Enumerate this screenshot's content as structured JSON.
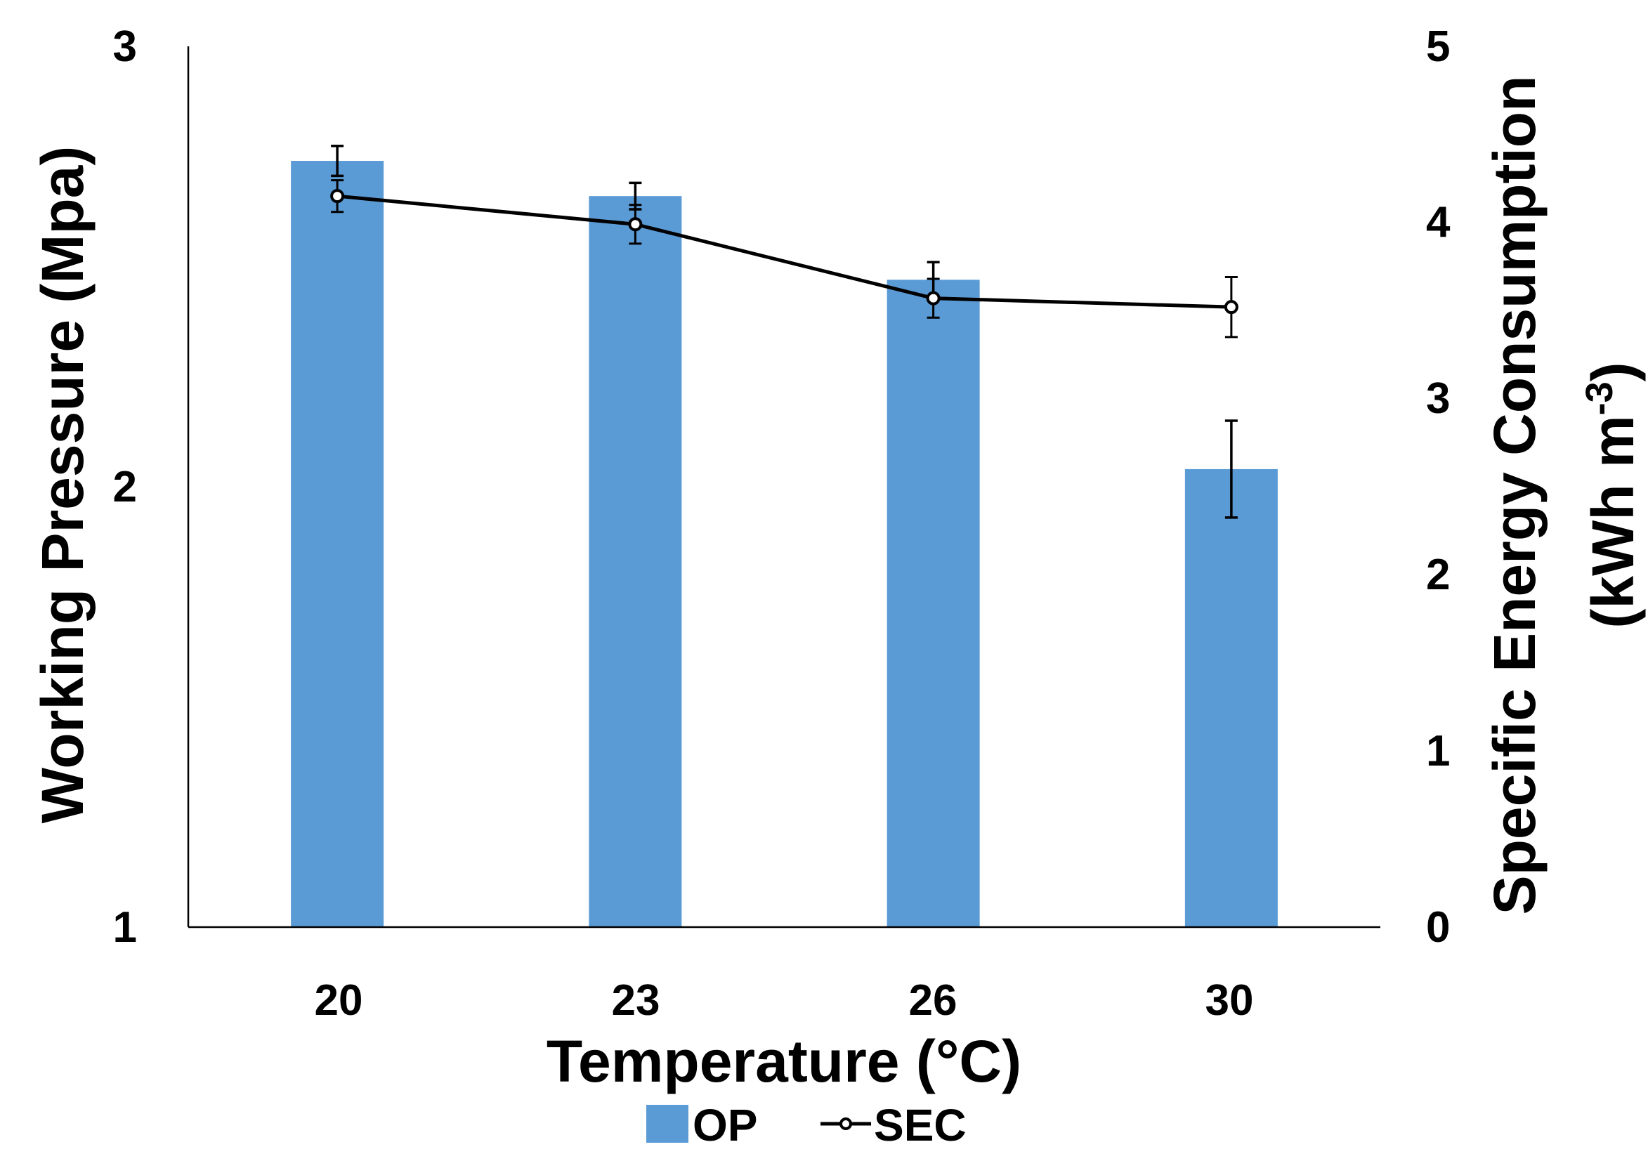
{
  "chart_data": {
    "type": "bar",
    "categories": [
      "20",
      "23",
      "26",
      "30"
    ],
    "xlabel": "Temperature (°C)",
    "left_axis": {
      "label": "Working Pressure (Mpa)",
      "ylim": [
        1,
        3
      ],
      "ticks": [
        "1",
        "2",
        "3"
      ]
    },
    "right_axis": {
      "label_line1": "Specific Energy Consumption",
      "label_line2_prefix": "(kWh m",
      "label_line2_sup": "-3",
      "label_line2_suffix": ")",
      "ylim": [
        0,
        5
      ],
      "ticks": [
        "0",
        "1",
        "2",
        "3",
        "4",
        "5"
      ]
    },
    "series": [
      {
        "name": "OP",
        "kind": "bar",
        "axis": "left",
        "color": "#5b9bd5",
        "values": [
          2.74,
          2.66,
          2.47,
          2.04
        ],
        "errors": [
          0.034,
          0.03,
          0.04,
          0.11
        ]
      },
      {
        "name": "SEC",
        "kind": "line",
        "axis": "right",
        "color": "#000000",
        "values": [
          4.15,
          3.99,
          3.57,
          3.52
        ],
        "errors": [
          0.09,
          0.11,
          0.11,
          0.17
        ]
      }
    ],
    "legend_position": "bottom"
  }
}
